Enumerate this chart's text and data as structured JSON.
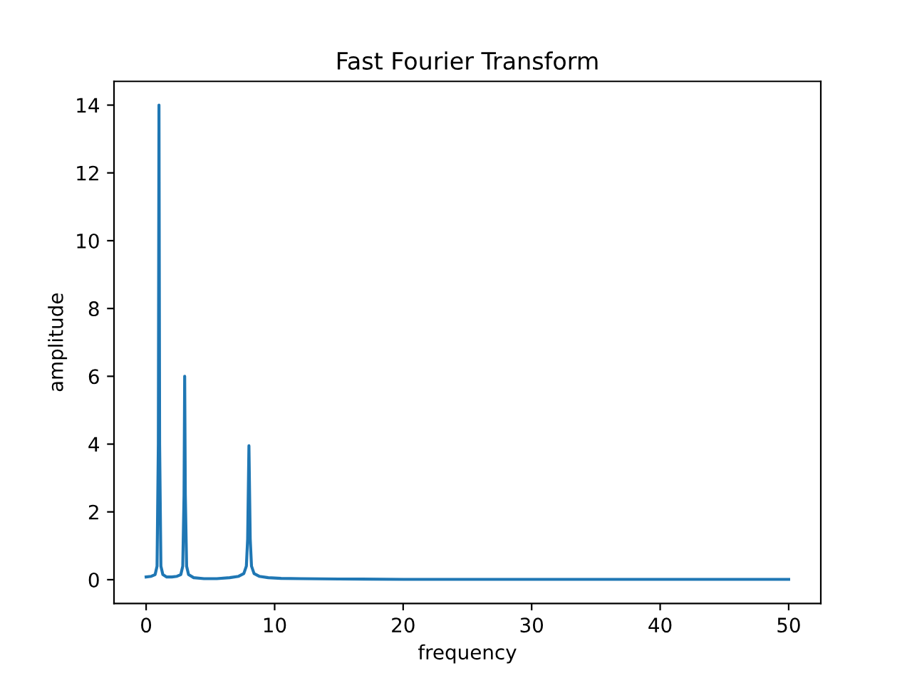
{
  "chart_data": {
    "type": "line",
    "title": "Fast Fourier Transform",
    "xlabel": "frequency",
    "ylabel": "amplitude",
    "xlim": [
      -2.5,
      52.5
    ],
    "ylim": [
      -0.7,
      14.7
    ],
    "xticks": [
      0,
      10,
      20,
      30,
      40,
      50
    ],
    "yticks": [
      0,
      2,
      4,
      6,
      8,
      10,
      12,
      14
    ],
    "grid": false,
    "legend": false,
    "series": [
      {
        "color": "#1f77b4",
        "x": [
          0,
          0.4,
          0.7,
          0.85,
          0.95,
          1.0,
          1.05,
          1.15,
          1.3,
          1.6,
          2.0,
          2.4,
          2.7,
          2.85,
          2.95,
          3.0,
          3.05,
          3.15,
          3.3,
          3.7,
          4.5,
          5.5,
          6.5,
          7.2,
          7.6,
          7.8,
          7.9,
          8.0,
          8.1,
          8.2,
          8.4,
          8.8,
          9.5,
          10.5,
          12,
          15,
          20,
          30,
          40,
          50
        ],
        "values": [
          0.08,
          0.1,
          0.15,
          0.4,
          4,
          14,
          4,
          0.4,
          0.15,
          0.08,
          0.08,
          0.1,
          0.15,
          0.4,
          2.5,
          6,
          2.5,
          0.4,
          0.15,
          0.06,
          0.03,
          0.03,
          0.06,
          0.1,
          0.18,
          0.4,
          1.2,
          3.95,
          1.2,
          0.4,
          0.18,
          0.1,
          0.06,
          0.04,
          0.03,
          0.02,
          0.01,
          0.01,
          0.01,
          0.01
        ]
      }
    ]
  }
}
